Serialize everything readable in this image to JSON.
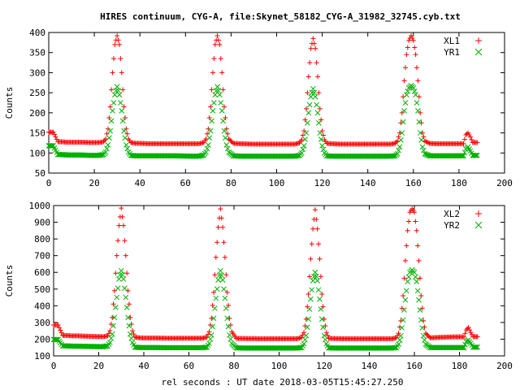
{
  "title": "HIRES continuum, CYG-A, file:Skynet_58182_CYG-A_31982_32745.cyb.txt",
  "colors": {
    "red": "#ff0000",
    "green": "#00b000",
    "axis": "#000000"
  },
  "chart_data": [
    {
      "type": "scatter",
      "title": "HIRES continuum, CYG-A, file:Skynet_58182_CYG-A_31982_32745.cyb.txt",
      "xlabel": "",
      "ylabel": "Counts",
      "xlim": [
        0,
        200
      ],
      "ylim": [
        50,
        400
      ],
      "xticks": [
        0,
        20,
        40,
        60,
        80,
        100,
        120,
        140,
        160,
        180,
        200
      ],
      "yticks": [
        50,
        100,
        150,
        200,
        250,
        300,
        350,
        400
      ],
      "legend": "top-right",
      "grid": false,
      "peak_centers": [
        30,
        73,
        116,
        159
      ],
      "series": [
        {
          "name": "XL1",
          "marker": "plus",
          "color": "#ff0000",
          "x": [
            0,
            2,
            4,
            6,
            8,
            10,
            14,
            18,
            22,
            24,
            25,
            26,
            27,
            28,
            29,
            30,
            31,
            32,
            33,
            34,
            35,
            36,
            38,
            40,
            44,
            50,
            56,
            62,
            66,
            68,
            69,
            70,
            71,
            72,
            73,
            74,
            75,
            76,
            77,
            78,
            79,
            81,
            84,
            90,
            96,
            102,
            108,
            110,
            111,
            112,
            113,
            114,
            115,
            116,
            117,
            118,
            119,
            120,
            121,
            122,
            124,
            128,
            134,
            140,
            146,
            150,
            152,
            153,
            154,
            155,
            156,
            157,
            158,
            159,
            160,
            161,
            162,
            163,
            164,
            165,
            167,
            170,
            174,
            178,
            182,
            183,
            184,
            185,
            186,
            188
          ],
          "y": [
            152,
            152,
            128,
            128,
            127,
            127,
            127,
            126,
            126,
            128,
            135,
            160,
            215,
            300,
            370,
            392,
            370,
            300,
            215,
            160,
            135,
            126,
            124,
            124,
            123,
            123,
            123,
            123,
            123,
            126,
            135,
            160,
            215,
            300,
            370,
            392,
            370,
            300,
            215,
            160,
            135,
            124,
            123,
            122,
            122,
            122,
            122,
            125,
            133,
            155,
            210,
            290,
            360,
            385,
            360,
            290,
            210,
            155,
            133,
            124,
            123,
            122,
            122,
            122,
            122,
            122,
            124,
            130,
            150,
            200,
            280,
            345,
            380,
            392,
            380,
            345,
            280,
            200,
            150,
            130,
            124,
            123,
            123,
            123,
            123,
            145,
            150,
            140,
            126,
            126
          ]
        },
        {
          "name": "YR1",
          "marker": "cross",
          "color": "#00b000",
          "x": [
            0,
            2,
            4,
            6,
            8,
            10,
            14,
            18,
            22,
            24,
            25,
            26,
            27,
            28,
            29,
            30,
            31,
            32,
            33,
            34,
            35,
            36,
            38,
            40,
            44,
            50,
            56,
            62,
            66,
            68,
            69,
            70,
            71,
            72,
            73,
            74,
            75,
            76,
            77,
            78,
            79,
            81,
            84,
            90,
            96,
            102,
            108,
            110,
            111,
            112,
            113,
            114,
            115,
            116,
            117,
            118,
            119,
            120,
            121,
            122,
            124,
            128,
            134,
            140,
            146,
            150,
            152,
            153,
            154,
            155,
            156,
            157,
            158,
            159,
            160,
            161,
            162,
            163,
            164,
            165,
            167,
            170,
            174,
            178,
            182,
            183,
            184,
            185,
            186,
            188
          ],
          "y": [
            118,
            118,
            96,
            96,
            95,
            95,
            95,
            94,
            94,
            96,
            102,
            120,
            155,
            205,
            245,
            265,
            245,
            205,
            155,
            120,
            102,
            94,
            93,
            93,
            93,
            93,
            93,
            92,
            92,
            95,
            102,
            120,
            155,
            205,
            245,
            265,
            245,
            205,
            155,
            120,
            102,
            93,
            92,
            92,
            92,
            92,
            92,
            94,
            100,
            118,
            150,
            200,
            240,
            260,
            240,
            200,
            150,
            118,
            100,
            93,
            92,
            92,
            92,
            92,
            92,
            92,
            93,
            98,
            115,
            150,
            205,
            245,
            262,
            268,
            262,
            245,
            205,
            150,
            115,
            98,
            93,
            93,
            93,
            93,
            93,
            110,
            115,
            105,
            94,
            94
          ]
        }
      ]
    },
    {
      "type": "scatter",
      "xlabel": "rel seconds : UT date 2018-03-05T15:45:27.250",
      "ylabel": "Counts",
      "xlim": [
        0,
        200
      ],
      "ylim": [
        100,
        1000
      ],
      "xticks": [
        0,
        20,
        40,
        60,
        80,
        100,
        120,
        140,
        160,
        180,
        200
      ],
      "yticks": [
        100,
        200,
        300,
        400,
        500,
        600,
        700,
        800,
        900,
        1000
      ],
      "legend": "top-right",
      "grid": false,
      "peak_centers": [
        30,
        73,
        116,
        159
      ],
      "series": [
        {
          "name": "XL2",
          "marker": "plus",
          "color": "#ff0000",
          "x": [
            0,
            2,
            4,
            6,
            8,
            10,
            14,
            18,
            22,
            24,
            25,
            26,
            27,
            28,
            29,
            30,
            31,
            32,
            33,
            34,
            35,
            36,
            38,
            40,
            44,
            50,
            56,
            62,
            66,
            68,
            69,
            70,
            71,
            72,
            73,
            74,
            75,
            76,
            77,
            78,
            79,
            81,
            84,
            90,
            96,
            102,
            108,
            110,
            111,
            112,
            113,
            114,
            115,
            116,
            117,
            118,
            119,
            120,
            121,
            122,
            124,
            128,
            134,
            140,
            146,
            150,
            152,
            153,
            154,
            155,
            156,
            157,
            158,
            159,
            160,
            161,
            162,
            163,
            164,
            165,
            167,
            170,
            174,
            178,
            182,
            183,
            184,
            185,
            186,
            188
          ],
          "y": [
            285,
            285,
            222,
            222,
            220,
            220,
            218,
            216,
            215,
            220,
            250,
            330,
            490,
            700,
            880,
            985,
            880,
            700,
            490,
            330,
            250,
            212,
            208,
            207,
            207,
            206,
            206,
            206,
            206,
            212,
            245,
            325,
            480,
            690,
            870,
            980,
            870,
            690,
            480,
            325,
            245,
            205,
            204,
            203,
            203,
            203,
            203,
            210,
            240,
            320,
            470,
            680,
            860,
            975,
            860,
            680,
            470,
            320,
            240,
            205,
            204,
            203,
            203,
            203,
            203,
            203,
            208,
            235,
            310,
            460,
            670,
            850,
            960,
            980,
            960,
            850,
            670,
            460,
            310,
            235,
            208,
            210,
            212,
            214,
            214,
            255,
            270,
            240,
            215,
            215
          ]
        },
        {
          "name": "YR2",
          "marker": "cross",
          "color": "#00b000",
          "x": [
            0,
            2,
            4,
            6,
            8,
            10,
            14,
            18,
            22,
            24,
            25,
            26,
            27,
            28,
            29,
            30,
            31,
            32,
            33,
            34,
            35,
            36,
            38,
            40,
            44,
            50,
            56,
            62,
            66,
            68,
            69,
            70,
            71,
            72,
            73,
            74,
            75,
            76,
            77,
            78,
            79,
            81,
            84,
            90,
            96,
            102,
            108,
            110,
            111,
            112,
            113,
            114,
            115,
            116,
            117,
            118,
            119,
            120,
            121,
            122,
            124,
            128,
            134,
            140,
            146,
            150,
            152,
            153,
            154,
            155,
            156,
            157,
            158,
            159,
            160,
            161,
            162,
            163,
            164,
            165,
            167,
            170,
            174,
            178,
            182,
            183,
            184,
            185,
            186,
            188
          ],
          "y": [
            198,
            198,
            160,
            160,
            158,
            158,
            157,
            156,
            155,
            160,
            180,
            230,
            330,
            450,
            560,
            610,
            560,
            450,
            330,
            230,
            180,
            152,
            150,
            150,
            150,
            149,
            149,
            149,
            149,
            152,
            175,
            225,
            325,
            445,
            555,
            610,
            555,
            445,
            325,
            225,
            175,
            148,
            147,
            147,
            147,
            147,
            147,
            150,
            172,
            222,
            320,
            440,
            550,
            600,
            550,
            440,
            320,
            222,
            172,
            148,
            147,
            147,
            147,
            147,
            147,
            147,
            150,
            170,
            220,
            315,
            435,
            545,
            600,
            615,
            600,
            545,
            435,
            315,
            220,
            170,
            150,
            150,
            150,
            150,
            150,
            185,
            195,
            175,
            152,
            152
          ]
        }
      ]
    }
  ]
}
